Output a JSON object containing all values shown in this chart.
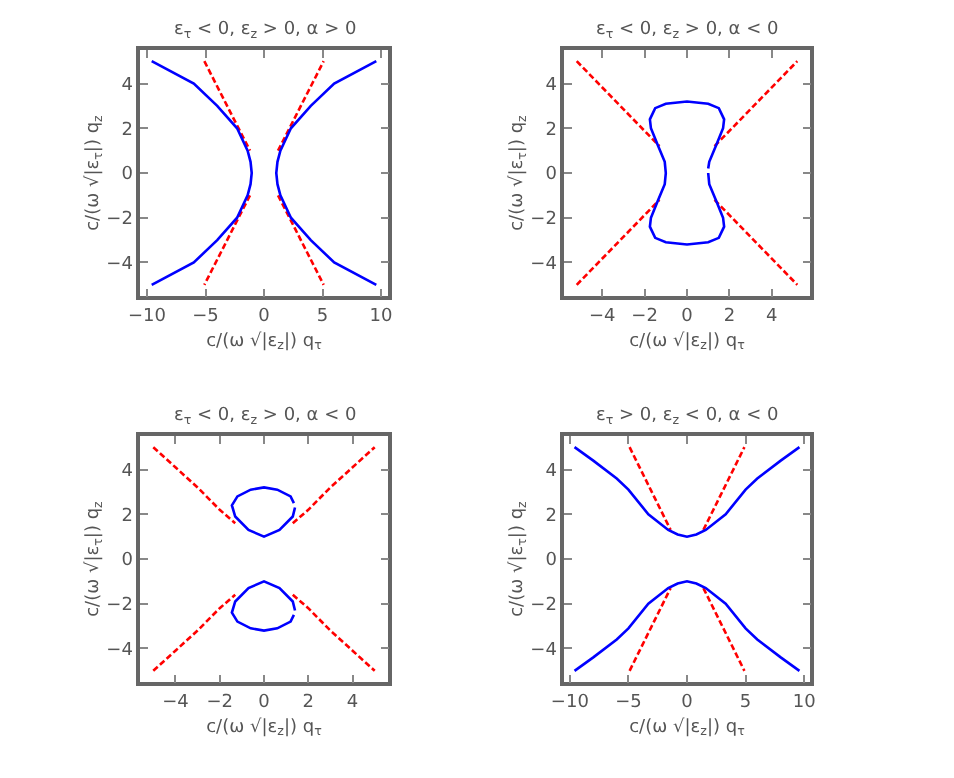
{
  "chart_data": [
    {
      "type": "line",
      "title": "ε$_{τ}$ < 0, ε$_{z}$ > 0, α > 0",
      "xlabel": "c/(ω √|ε$_{z}$|) q$_{τ}$",
      "ylabel": "c/(ω √|ε$_{τ}$|) q$_{z}$",
      "xlim": [
        -10.6,
        10.6
      ],
      "ylim": [
        -5.5,
        5.5
      ],
      "xticks": [
        -10,
        -5,
        0,
        5,
        10
      ],
      "yticks": [
        -4,
        -2,
        0,
        2,
        4
      ],
      "grid": false,
      "line_style": "solid",
      "series": [
        {
          "color": "#ff0000",
          "line_style": "dashed",
          "x": [
            -5.1,
            -1.2
          ],
          "values": [
            5,
            1
          ]
        },
        {
          "color": "#ff0000",
          "line_style": "dashed",
          "x": [
            -1.2,
            -5.1
          ],
          "values": [
            -1,
            -5
          ]
        },
        {
          "color": "#ff0000",
          "line_style": "dashed",
          "x": [
            1.2,
            5.1
          ],
          "values": [
            1,
            5
          ]
        },
        {
          "color": "#ff0000",
          "line_style": "dashed",
          "x": [
            1.2,
            5.1
          ],
          "values": [
            -1,
            -5
          ]
        },
        {
          "color": "#0000ff",
          "x": [
            -9.6,
            -6.0,
            -4.0,
            -2.3,
            -1.4,
            -1.15,
            -1.05,
            -1.15,
            -1.4,
            -2.3,
            -4.0,
            -6.0,
            -9.6
          ],
          "values": [
            5,
            4,
            3,
            2,
            1,
            0.5,
            0,
            -0.5,
            -1,
            -2,
            -3,
            -4,
            -5
          ]
        },
        {
          "color": "#0000ff",
          "x": [
            9.6,
            6.0,
            4.0,
            2.3,
            1.4,
            1.15,
            1.05,
            1.15,
            1.4,
            2.3,
            4.0,
            6.0,
            9.6
          ],
          "values": [
            5,
            4,
            3,
            2,
            1,
            0.5,
            0,
            -0.5,
            -1,
            -2,
            -3,
            -4,
            -5
          ]
        }
      ]
    },
    {
      "type": "line",
      "title": "ε$_{τ}$ < 0, ε$_{z}$ > 0, α < 0",
      "xlabel": "c/(ω √|ε$_{z}$|) q$_{τ}$",
      "ylabel": "c/(ω √|ε$_{τ}$|) q$_{z}$",
      "xlim": [
        -5.8,
        5.8
      ],
      "ylim": [
        -5.5,
        5.5
      ],
      "xticks": [
        -4,
        -2,
        0,
        2,
        4
      ],
      "yticks": [
        -4,
        -2,
        0,
        2,
        4
      ],
      "grid": false,
      "line_style": "solid",
      "series": [
        {
          "color": "#ff0000",
          "line_style": "dashed",
          "x": [
            -5.2,
            -1.3
          ],
          "values": [
            5,
            1.2
          ]
        },
        {
          "color": "#ff0000",
          "line_style": "dashed",
          "x": [
            1.3,
            5.2
          ],
          "values": [
            -1.2,
            -5
          ]
        },
        {
          "color": "#ff0000",
          "line_style": "dashed",
          "x": [
            -5.2,
            -1.3
          ],
          "values": [
            -5,
            -1.2
          ]
        },
        {
          "color": "#ff0000",
          "line_style": "dashed",
          "x": [
            1.3,
            5.2
          ],
          "values": [
            1.2,
            5
          ]
        },
        {
          "color": "#0000ff",
          "x": [
            1,
            1.05,
            1.4,
            1.7,
            1.75,
            1.5,
            1,
            0,
            -1,
            -1.5,
            -1.75,
            -1.7,
            -1.4,
            -1.05,
            -1,
            -1.05,
            -1.4,
            -1.7,
            -1.75,
            -1.5,
            -1,
            0,
            1,
            1.5,
            1.75,
            1.7,
            1.4,
            1.05,
            1
          ],
          "values": [
            0,
            -0.5,
            -1.3,
            -2,
            -2.4,
            -2.9,
            -3.1,
            -3.2,
            -3.1,
            -2.9,
            -2.4,
            -2,
            -1.3,
            -0.5,
            0,
            0.5,
            1.3,
            2,
            2.4,
            2.9,
            3.1,
            3.2,
            3.1,
            2.9,
            2.4,
            2,
            1.3,
            0.5,
            0.2
          ]
        }
      ]
    },
    {
      "type": "line",
      "title": "ε$_{τ}$ < 0, ε$_{z}$ > 0, α < 0",
      "xlabel": "c/(ω √|ε$_{z}$|) q$_{τ}$",
      "ylabel": "c/(ω √|ε$_{τ}$|) q$_{z}$",
      "xlim": [
        -5.6,
        5.6
      ],
      "ylim": [
        -5.5,
        5.5
      ],
      "xticks": [
        -4,
        -2,
        0,
        2,
        4
      ],
      "yticks": [
        -4,
        -2,
        0,
        2,
        4
      ],
      "grid": false,
      "line_style": "solid",
      "series": [
        {
          "color": "#ff0000",
          "line_style": "dashed",
          "x": [
            -5,
            -4,
            -3,
            -2,
            -1.3
          ],
          "values": [
            5,
            4.1,
            3.2,
            2.2,
            1.6
          ]
        },
        {
          "color": "#ff0000",
          "line_style": "dashed",
          "x": [
            1.3,
            2,
            3,
            4,
            5
          ],
          "values": [
            1.6,
            2.2,
            3.2,
            4.1,
            5
          ]
        },
        {
          "color": "#ff0000",
          "line_style": "dashed",
          "x": [
            -5,
            -4,
            -3,
            -2,
            -1.3
          ],
          "values": [
            -5,
            -4.1,
            -3.2,
            -2.2,
            -1.6
          ]
        },
        {
          "color": "#ff0000",
          "line_style": "dashed",
          "x": [
            1.3,
            2,
            3,
            4,
            5
          ],
          "values": [
            -1.6,
            -2.2,
            -3.2,
            -4.1,
            -5
          ]
        },
        {
          "color": "#0000ff",
          "x": [
            1.4,
            1.3,
            0.7,
            0,
            -0.7,
            -1.3,
            -1.45,
            -1.2,
            -0.6,
            0,
            0.6,
            1.2,
            1.35
          ],
          "values": [
            2.3,
            1.9,
            1.3,
            1,
            1.3,
            1.9,
            2.4,
            2.8,
            3.1,
            3.2,
            3.1,
            2.8,
            2.5
          ]
        },
        {
          "color": "#0000ff",
          "x": [
            1.4,
            1.3,
            0.7,
            0,
            -0.7,
            -1.3,
            -1.45,
            -1.2,
            -0.6,
            0,
            0.6,
            1.2,
            1.35
          ],
          "values": [
            -2.3,
            -1.9,
            -1.3,
            -1,
            -1.3,
            -1.9,
            -2.4,
            -2.8,
            -3.1,
            -3.2,
            -3.1,
            -2.8,
            -2.5
          ]
        }
      ]
    },
    {
      "type": "line",
      "title": "ε$_{τ}$ > 0, ε$_{z}$ < 0, α < 0",
      "xlabel": "c/(ω √|ε$_{z}$|) q$_{τ}$",
      "ylabel": "c/(ω √|ε$_{τ}$|) q$_{z}$",
      "xlim": [
        -10.5,
        10.5
      ],
      "ylim": [
        -5.5,
        5.5
      ],
      "xticks": [
        -10,
        -5,
        0,
        5,
        10
      ],
      "yticks": [
        -4,
        -2,
        0,
        2,
        4
      ],
      "grid": false,
      "line_style": "solid",
      "series": [
        {
          "color": "#ff0000",
          "line_style": "dashed",
          "x": [
            -4.9,
            -1.4
          ],
          "values": [
            5,
            1.3
          ]
        },
        {
          "color": "#ff0000",
          "line_style": "dashed",
          "x": [
            1.4,
            4.9
          ],
          "values": [
            1.3,
            5
          ]
        },
        {
          "color": "#ff0000",
          "line_style": "dashed",
          "x": [
            -4.9,
            -1.4
          ],
          "values": [
            -5,
            -1.3
          ]
        },
        {
          "color": "#ff0000",
          "line_style": "dashed",
          "x": [
            1.4,
            4.9
          ],
          "values": [
            -1.3,
            -5
          ]
        },
        {
          "color": "#0000ff",
          "x": [
            -9.6,
            -8,
            -6,
            -5,
            -3.3,
            -1.6,
            -0.8,
            0,
            0.8,
            1.6,
            3.3,
            5,
            6,
            8,
            9.6
          ],
          "values": [
            5,
            4.4,
            3.6,
            3.1,
            2.0,
            1.3,
            1.1,
            1,
            1.1,
            1.3,
            2.0,
            3.1,
            3.6,
            4.4,
            5
          ]
        },
        {
          "color": "#0000ff",
          "x": [
            -9.6,
            -8,
            -6,
            -5,
            -3.3,
            -1.6,
            -0.8,
            0,
            0.8,
            1.6,
            3.3,
            5,
            6,
            8,
            9.6
          ],
          "values": [
            -5,
            -4.4,
            -3.6,
            -3.1,
            -2.0,
            -1.3,
            -1.1,
            -1,
            -1.1,
            -1.3,
            -2.0,
            -3.1,
            -3.6,
            -4.4,
            -5
          ]
        }
      ]
    }
  ]
}
